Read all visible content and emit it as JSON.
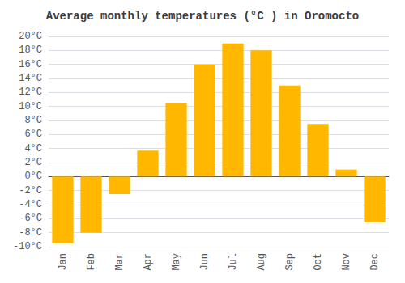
{
  "chart_data": {
    "type": "bar",
    "title": "Average monthly temperatures (°C ) in Oromocto",
    "categories": [
      "Jan",
      "Feb",
      "Mar",
      "Apr",
      "May",
      "Jun",
      "Jul",
      "Aug",
      "Sep",
      "Oct",
      "Nov",
      "Dec"
    ],
    "values": [
      -9.5,
      -8.0,
      -2.5,
      3.7,
      10.5,
      16.0,
      19.0,
      18.0,
      13.0,
      7.5,
      1.0,
      -6.5
    ],
    "color": "#FFB700",
    "ylim": [
      -10,
      20
    ],
    "yticks": [
      {
        "value": -10,
        "label": "-10°C"
      },
      {
        "value": -8,
        "label": "-8°C"
      },
      {
        "value": -6,
        "label": "-6°C"
      },
      {
        "value": -4,
        "label": "-4°C"
      },
      {
        "value": -2,
        "label": "-2°C"
      },
      {
        "value": 0,
        "label": "0°C"
      },
      {
        "value": 2,
        "label": "2°C"
      },
      {
        "value": 4,
        "label": "4°C"
      },
      {
        "value": 6,
        "label": "6°C"
      },
      {
        "value": 8,
        "label": "8°C"
      },
      {
        "value": 10,
        "label": "10°C"
      },
      {
        "value": 12,
        "label": "12°C"
      },
      {
        "value": 14,
        "label": "14°C"
      },
      {
        "value": 16,
        "label": "16°C"
      },
      {
        "value": 18,
        "label": "18°C"
      },
      {
        "value": 20,
        "label": "20°C"
      }
    ],
    "grid": true
  }
}
